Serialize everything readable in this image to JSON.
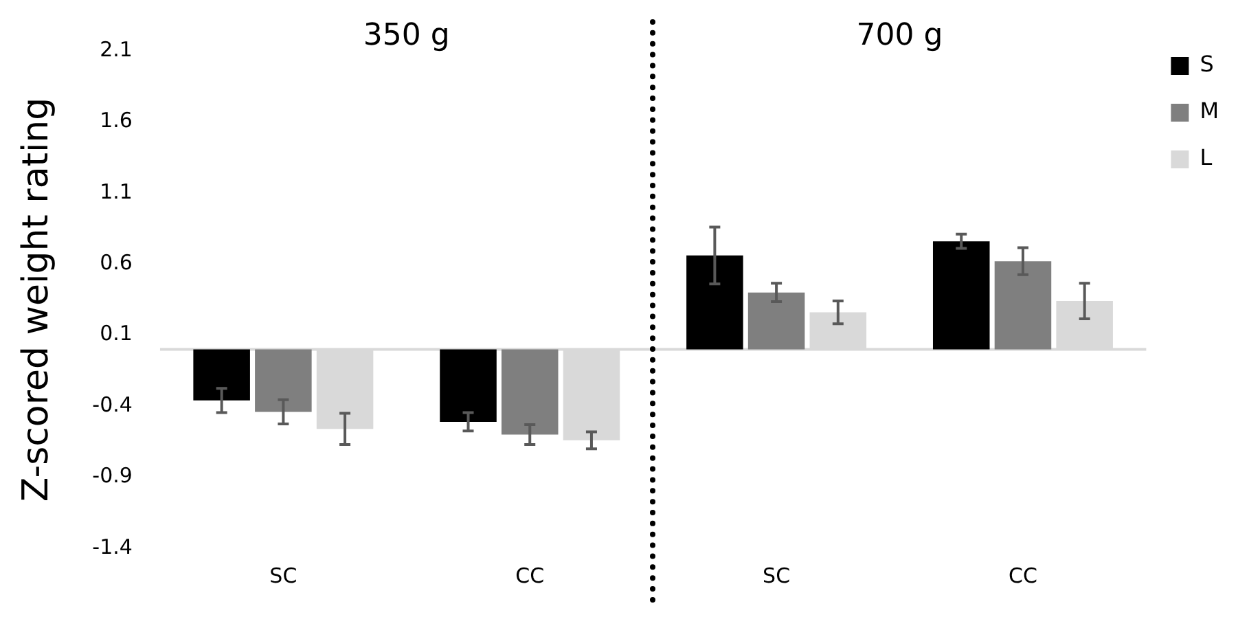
{
  "chart_data": {
    "type": "bar",
    "ylabel": "Z-scored weight rating",
    "annotations": [
      "350 g",
      "700 g"
    ],
    "categories": [
      "SC",
      "CC",
      "SC",
      "CC"
    ],
    "series": [
      {
        "name": "S",
        "color": "#000000",
        "values": [
          -0.36,
          -0.51,
          0.66,
          0.76
        ],
        "errors": [
          0.085,
          0.065,
          0.2,
          0.05
        ]
      },
      {
        "name": "M",
        "color": "#7f7f7f",
        "values": [
          -0.44,
          -0.6,
          0.4,
          0.62
        ],
        "errors": [
          0.085,
          0.07,
          0.065,
          0.095
        ]
      },
      {
        "name": "L",
        "color": "#d9d9d9",
        "values": [
          -0.56,
          -0.64,
          0.26,
          0.34
        ],
        "errors": [
          0.11,
          0.06,
          0.08,
          0.125
        ]
      }
    ],
    "ylim": [
      -1.4,
      2.1
    ],
    "yticks": [
      -1.4,
      -0.9,
      -0.4,
      0.1,
      0.6,
      1.1,
      1.6,
      2.1
    ],
    "grid": false,
    "legend": "right"
  }
}
